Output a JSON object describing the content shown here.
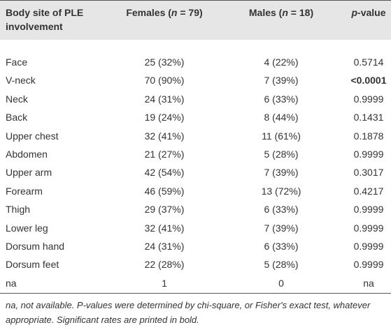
{
  "table": {
    "header": [
      [
        "Body site of PLE involvement"
      ],
      [
        "Females (",
        "n",
        " = 79)"
      ],
      [
        "Males (",
        "n",
        " = 18)"
      ],
      [
        "p",
        "-value"
      ]
    ],
    "header_italic": [
      [],
      [
        1
      ],
      [
        1
      ],
      [
        0
      ]
    ],
    "rows": [
      [
        "Face",
        "25 (32%)",
        "4 (22%)",
        "0.5714"
      ],
      [
        "V-neck",
        "70 (90%)",
        "7 (39%)",
        {
          "text": "<0.0001",
          "bold": true
        }
      ],
      [
        "Neck",
        "24 (31%)",
        "6 (33%)",
        "0.9999"
      ],
      [
        "Back",
        "19 (24%)",
        "8 (44%)",
        "0.1431"
      ],
      [
        "Upper chest",
        "32 (41%)",
        "11 (61%)",
        "0.1878"
      ],
      [
        "Abdomen",
        "21 (27%)",
        "5 (28%)",
        "0.9999"
      ],
      [
        "Upper arm",
        "42 (54%)",
        "7 (39%)",
        "0.3017"
      ],
      [
        "Forearm",
        "46 (59%)",
        "13 (72%)",
        "0.4217"
      ],
      [
        "Thigh",
        "29 (37%)",
        "6 (33%)",
        "0.9999"
      ],
      [
        "Lower leg",
        "32 (41%)",
        "7 (39%)",
        "0.9999"
      ],
      [
        "Dorsum hand",
        "24 (31%)",
        "6 (33%)",
        "0.9999"
      ],
      [
        "Dorsum feet",
        "22 (28%)",
        "5 (28%)",
        "0.9999"
      ],
      [
        "na",
        "1",
        "0",
        "na"
      ]
    ],
    "footnote": "na, not available. P-values were determined by chi-square, or Fisher's exact test, whatever appropriate. Significant rates are printed in bold."
  }
}
